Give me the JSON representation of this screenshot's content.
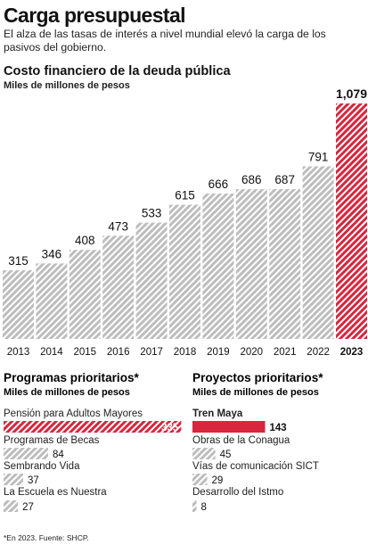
{
  "header": {
    "title": "Carga presupuestal",
    "subtitle": "El alza de las tasas de interés a nivel mundial elevó la carga de los pasivos del gobierno."
  },
  "colors": {
    "bar_gray": "#bdbdbd",
    "bar_highlight": "#d7263d",
    "stripe": "#ffffff",
    "text": "#111111"
  },
  "chart_data": [
    {
      "type": "bar",
      "title": "Costo financiero de la deuda pública",
      "subtitle": "Miles de millones de pesos",
      "categories": [
        "2013",
        "2014",
        "2015",
        "2016",
        "2017",
        "2018",
        "2019",
        "2020",
        "2021",
        "2022",
        "2023"
      ],
      "value_labels": [
        "315",
        "346",
        "408",
        "473",
        "533",
        "615",
        "666",
        "686",
        "687",
        "791",
        "1,079"
      ],
      "values": [
        315,
        346,
        408,
        473,
        533,
        615,
        666,
        686,
        687,
        791,
        1079
      ],
      "highlight_index": 10,
      "ylim": [
        0,
        1079
      ]
    },
    {
      "type": "bar",
      "orientation": "horizontal",
      "title": "Programas prioritarios*",
      "subtitle": "Miles de millones de pesos",
      "categories": [
        "Pensión para Adultos Mayores",
        "Programas de Becas",
        "Sembrando Vida",
        "La Escuela es Nuestra"
      ],
      "values": [
        335,
        84,
        37,
        27
      ],
      "highlight_index": 0
    },
    {
      "type": "bar",
      "orientation": "horizontal",
      "title": "Proyectos prioritarios*",
      "subtitle": "Miles de millones de pesos",
      "categories": [
        "Tren Maya",
        "Obras de la Conagua",
        "Vías de comunicación SICT",
        "Desarrollo del Istmo"
      ],
      "values": [
        143,
        45,
        29,
        8
      ],
      "highlight_index": 0
    }
  ],
  "footer": {
    "source": "*En 2023. Fuente: SHCP."
  }
}
